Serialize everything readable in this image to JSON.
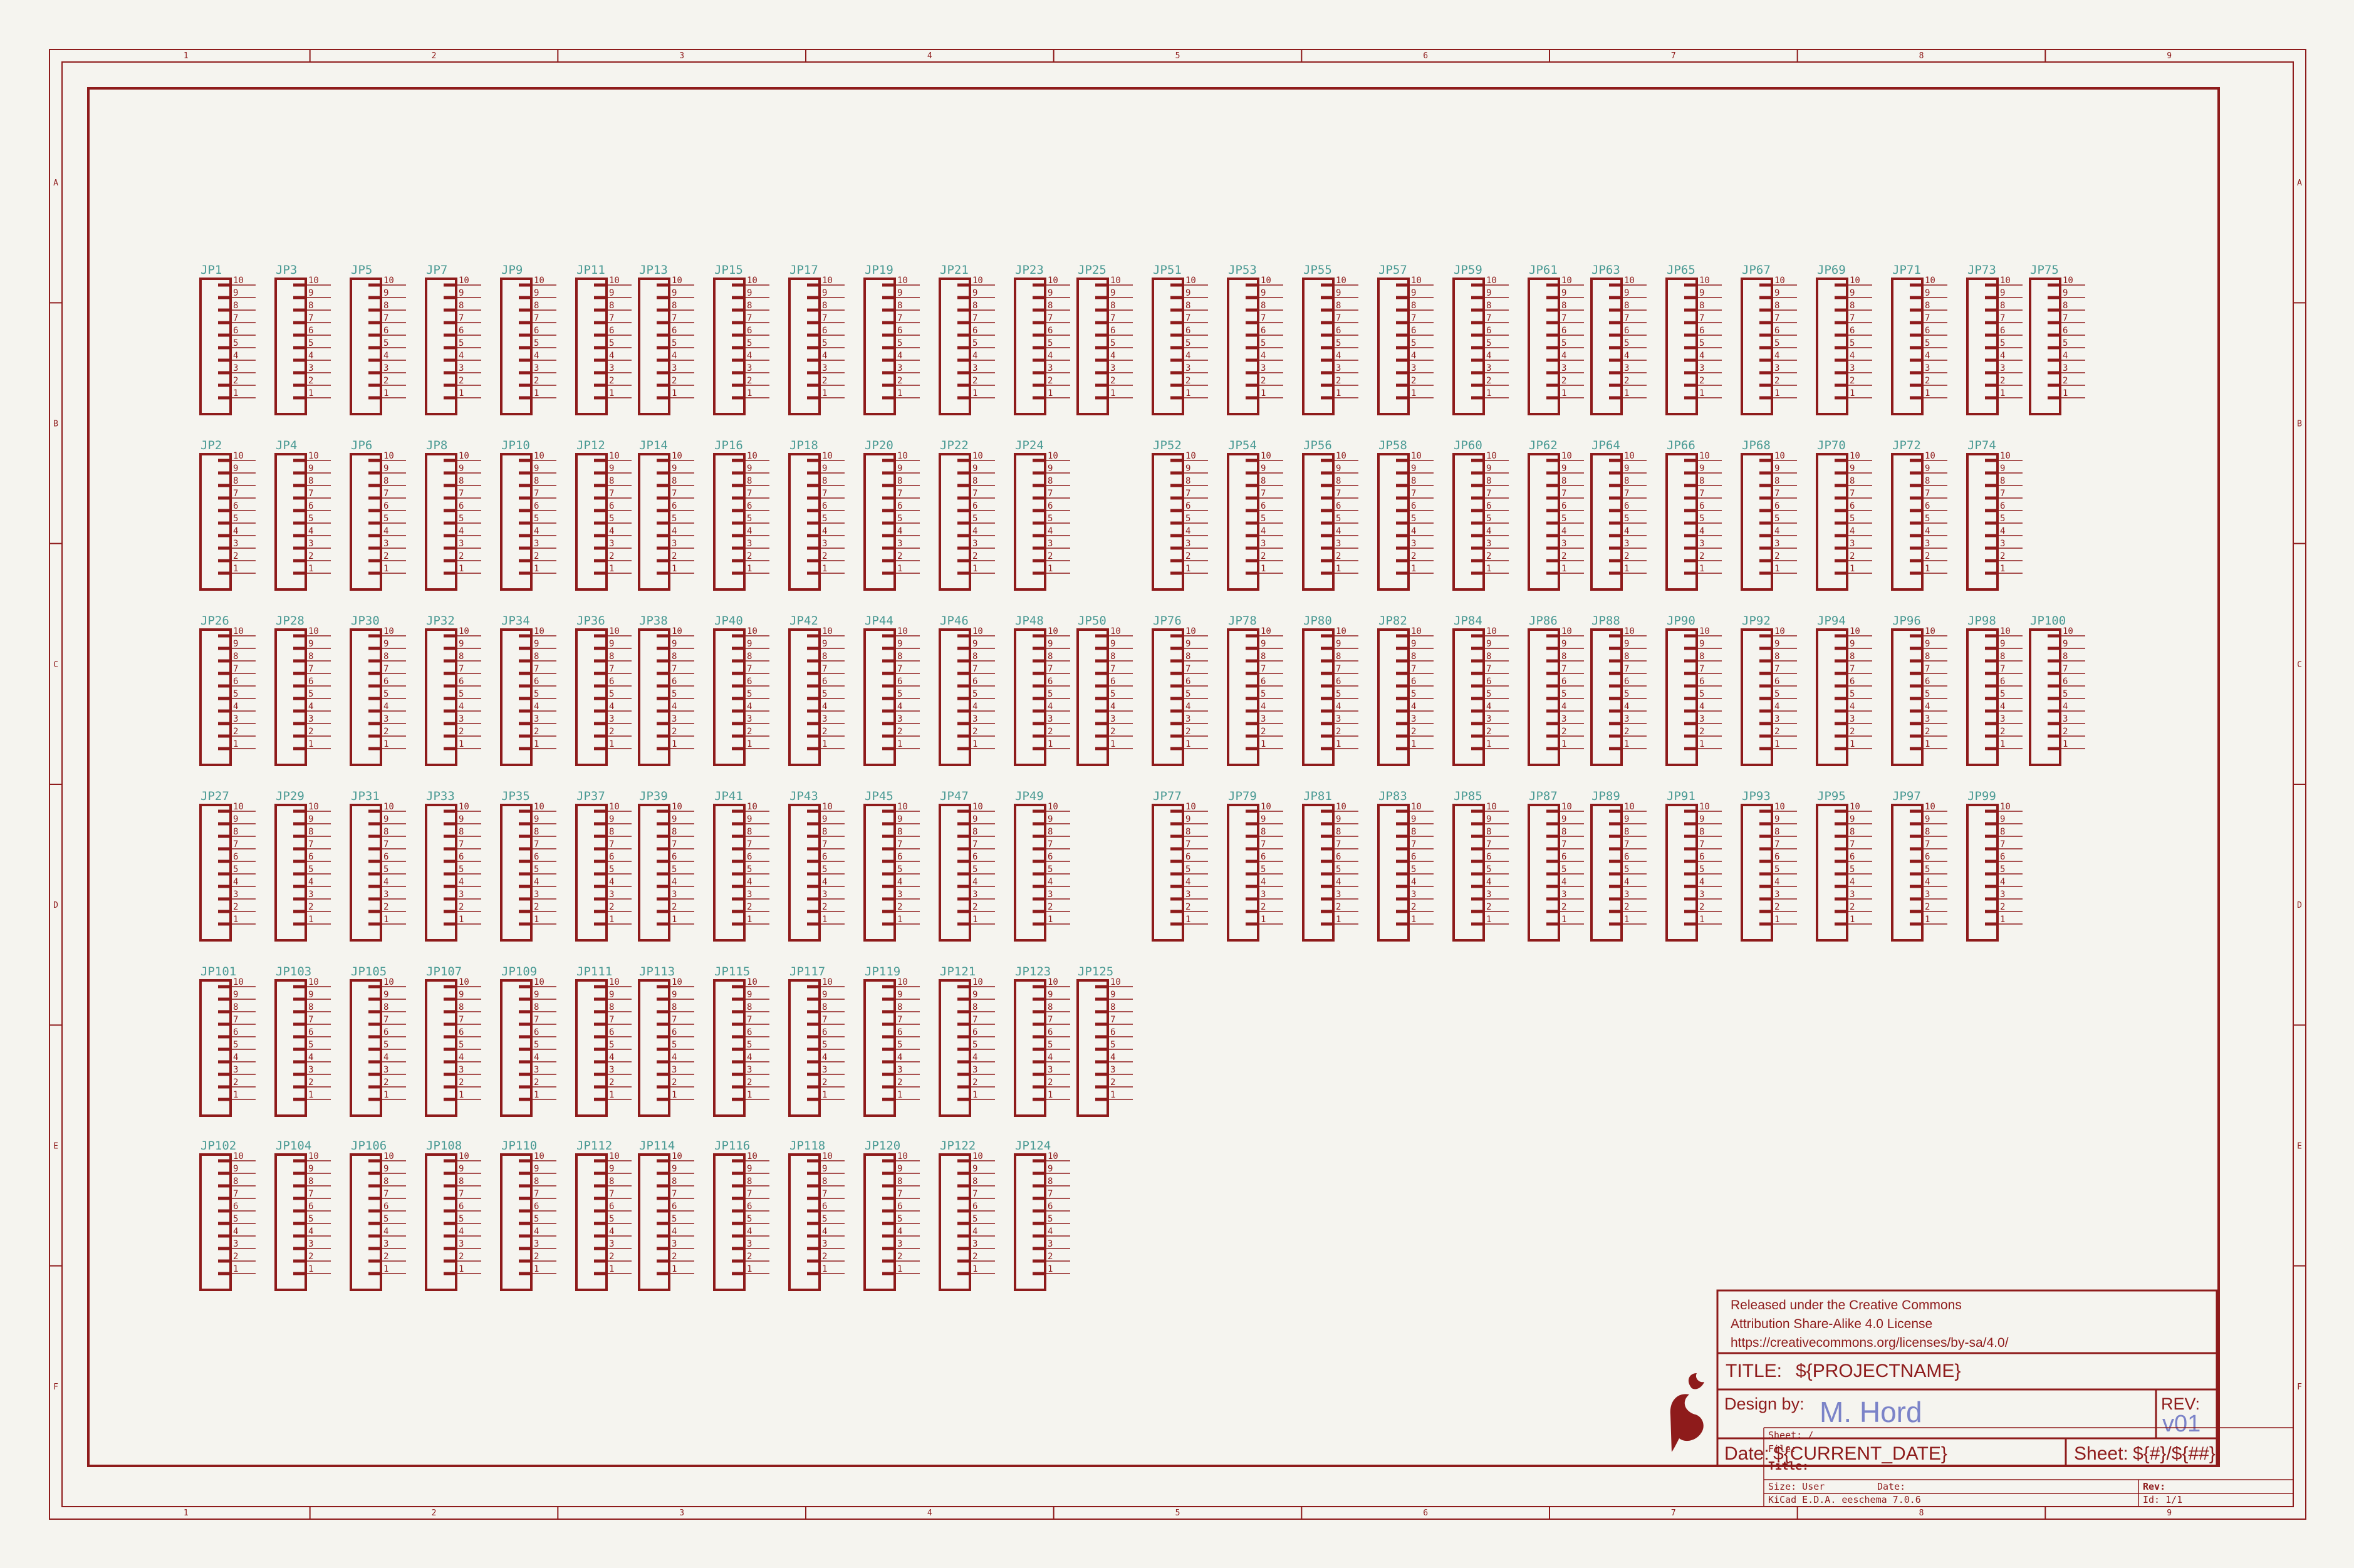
{
  "colors": {
    "background": "#f5f4ef",
    "line": "#8e1b1b",
    "reference": "#4a9a94",
    "designer": "#7b83c8"
  },
  "frame": {
    "columns": [
      "1",
      "2",
      "3",
      "4",
      "5",
      "6",
      "7",
      "8",
      "9"
    ],
    "rows": [
      "A",
      "B",
      "C",
      "D",
      "E",
      "F"
    ]
  },
  "connector": {
    "pins": [
      "10",
      "9",
      "8",
      "7",
      "6",
      "5",
      "4",
      "3",
      "2",
      "1"
    ]
  },
  "connectors": [
    [
      "JP1",
      "JP3",
      "JP5",
      "JP7",
      "JP9",
      "JP11",
      "JP13",
      "JP15",
      "JP17",
      "JP19",
      "JP21",
      "JP23",
      "JP25",
      "JP51",
      "JP53",
      "JP55",
      "JP57",
      "JP59",
      "JP61",
      "JP63",
      "JP65",
      "JP67",
      "JP69",
      "JP71",
      "JP73",
      "JP75"
    ],
    [
      "JP2",
      "JP4",
      "JP6",
      "JP8",
      "JP10",
      "JP12",
      "JP14",
      "JP16",
      "JP18",
      "JP20",
      "JP22",
      "JP24",
      "",
      "JP52",
      "JP54",
      "JP56",
      "JP58",
      "JP60",
      "JP62",
      "JP64",
      "JP66",
      "JP68",
      "JP70",
      "JP72",
      "JP74",
      ""
    ],
    [
      "JP26",
      "JP28",
      "JP30",
      "JP32",
      "JP34",
      "JP36",
      "JP38",
      "JP40",
      "JP42",
      "JP44",
      "JP46",
      "JP48",
      "JP50",
      "JP76",
      "JP78",
      "JP80",
      "JP82",
      "JP84",
      "JP86",
      "JP88",
      "JP90",
      "JP92",
      "JP94",
      "JP96",
      "JP98",
      "JP100"
    ],
    [
      "JP27",
      "JP29",
      "JP31",
      "JP33",
      "JP35",
      "JP37",
      "JP39",
      "JP41",
      "JP43",
      "JP45",
      "JP47",
      "JP49",
      "",
      "JP77",
      "JP79",
      "JP81",
      "JP83",
      "JP85",
      "JP87",
      "JP89",
      "JP91",
      "JP93",
      "JP95",
      "JP97",
      "JP99",
      ""
    ],
    [
      "JP101",
      "JP103",
      "JP105",
      "JP107",
      "JP109",
      "JP111",
      "JP113",
      "JP115",
      "JP117",
      "JP119",
      "JP121",
      "JP123",
      "JP125"
    ],
    [
      "JP102",
      "JP104",
      "JP106",
      "JP108",
      "JP110",
      "JP112",
      "JP114",
      "JP116",
      "JP118",
      "JP120",
      "JP122",
      "JP124"
    ]
  ],
  "title_block": {
    "license_line1": "Released under the Creative Commons",
    "license_line2": "Attribution Share-Alike 4.0 License",
    "license_line3": "https://creativecommons.org/licenses/by-sa/4.0/",
    "title_label": "TITLE:",
    "title_value": "${PROJECTNAME}",
    "design_label": "Design by:",
    "designer": "M. Hord",
    "rev_label": "REV:",
    "rev_value": "v01",
    "date_label": "Date:",
    "date_value": "${CURRENT_DATE}",
    "sheet_label": "Sheet:",
    "sheet_value": "${#}/${##}"
  },
  "kicad_block": {
    "sheet": "Sheet: /",
    "file": "File: ",
    "title": "Title:",
    "size": "Size: User",
    "date": "Date:",
    "rev": "Rev:",
    "tool": "KiCad E.D.A.  eeschema 7.0.6",
    "id": "Id: 1/1"
  }
}
